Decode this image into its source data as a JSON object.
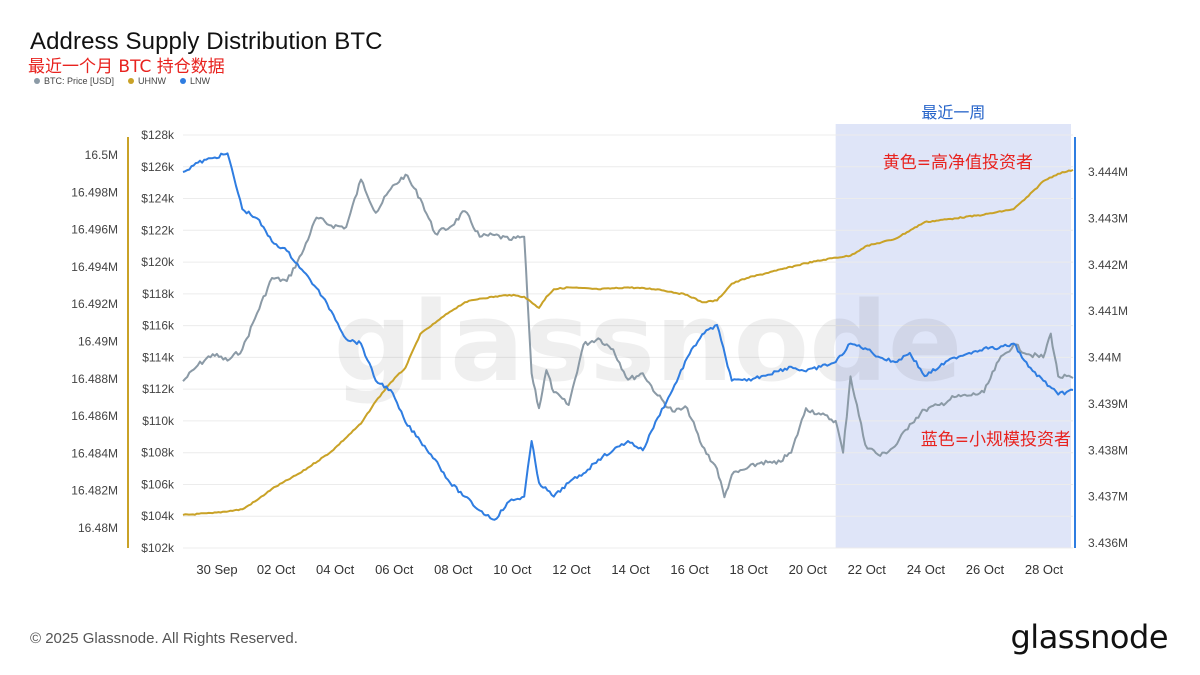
{
  "header": {
    "title": "Address Supply Distribution BTC",
    "subtitle": "最近一个月 BTC 持仓数据"
  },
  "legend": [
    {
      "label": "BTC: Price [USD]",
      "color": "#8b9aa6"
    },
    {
      "label": "UHNW",
      "color": "#c9a227"
    },
    {
      "label": "LNW",
      "color": "#2f7de1"
    }
  ],
  "footer": {
    "copyright": "© 2025 Glassnode. All Rights Reserved.",
    "logo": "glassnode"
  },
  "chart_data": {
    "type": "line",
    "title": "Address Supply Distribution BTC",
    "x_ticks": [
      "30 Sep",
      "02 Oct",
      "04 Oct",
      "06 Oct",
      "08 Oct",
      "10 Oct",
      "12 Oct",
      "14 Oct",
      "16 Oct",
      "18 Oct",
      "20 Oct",
      "22 Oct",
      "24 Oct",
      "26 Oct",
      "28 Oct"
    ],
    "x_range": [
      "2025-09-29",
      "2025-10-29"
    ],
    "axes": {
      "price": {
        "side": "middle-left",
        "ticks": [
          "$128k",
          "$126k",
          "$124k",
          "$122k",
          "$120k",
          "$118k",
          "$116k",
          "$114k",
          "$112k",
          "$110k",
          "$108k",
          "$106k",
          "$104k",
          "$102k"
        ],
        "range": [
          102000,
          128000
        ]
      },
      "uhnw": {
        "side": "left",
        "color": "#c9a227",
        "ticks": [
          "16.5M",
          "16.498M",
          "16.496M",
          "16.494M",
          "16.492M",
          "16.49M",
          "16.488M",
          "16.486M",
          "16.484M",
          "16.482M",
          "16.48M"
        ],
        "range": [
          16479000,
          16501000
        ]
      },
      "lnw": {
        "side": "right",
        "color": "#2f7de1",
        "ticks": [
          "3.444M",
          "3.443M",
          "3.442M",
          "3.441M",
          "3.44M",
          "3.439M",
          "3.438M",
          "3.437M",
          "3.436M"
        ],
        "range": [
          3435800,
          3444600
        ]
      }
    },
    "series": [
      {
        "name": "BTC: Price [USD]",
        "axis": "price",
        "color": "#8b9aa6",
        "points": [
          [
            "2025-09-29",
            112500
          ],
          [
            "2025-09-29T12:00",
            113500
          ],
          [
            "2025-09-30",
            114200
          ],
          [
            "2025-09-30T12:00",
            113800
          ],
          [
            "2025-10-01",
            114500
          ],
          [
            "2025-10-01T12:00",
            116800
          ],
          [
            "2025-10-02",
            119000
          ],
          [
            "2025-10-02T12:00",
            118800
          ],
          [
            "2025-10-03",
            120500
          ],
          [
            "2025-10-03T12:00",
            122800
          ],
          [
            "2025-10-04",
            122300
          ],
          [
            "2025-10-04T12:00",
            122200
          ],
          [
            "2025-10-05",
            125200
          ],
          [
            "2025-10-05T12:00",
            123100
          ],
          [
            "2025-10-06",
            124600
          ],
          [
            "2025-10-06T12:00",
            125500
          ],
          [
            "2025-10-07",
            124000
          ],
          [
            "2025-10-07T12:00",
            121800
          ],
          [
            "2025-10-08",
            122200
          ],
          [
            "2025-10-08T12:00",
            123200
          ],
          [
            "2025-10-09",
            121600
          ],
          [
            "2025-10-09T12:00",
            121700
          ],
          [
            "2025-10-10",
            121400
          ],
          [
            "2025-10-10T12:00",
            121600
          ],
          [
            "2025-10-10T18:00",
            113000
          ],
          [
            "2025-10-11",
            110800
          ],
          [
            "2025-10-11T06:00",
            113200
          ],
          [
            "2025-10-11T12:00",
            111800
          ],
          [
            "2025-10-12",
            111000
          ],
          [
            "2025-10-12T12:00",
            114800
          ],
          [
            "2025-10-13",
            115200
          ],
          [
            "2025-10-13T12:00",
            114500
          ],
          [
            "2025-10-14",
            112600
          ],
          [
            "2025-10-14T12:00",
            113000
          ],
          [
            "2025-10-15",
            111600
          ],
          [
            "2025-10-15T12:00",
            110600
          ],
          [
            "2025-10-16",
            110800
          ],
          [
            "2025-10-16T12:00",
            108400
          ],
          [
            "2025-10-17",
            107000
          ],
          [
            "2025-10-17T06:00",
            105200
          ],
          [
            "2025-10-17T12:00",
            106600
          ],
          [
            "2025-10-18",
            107000
          ],
          [
            "2025-10-18T12:00",
            107400
          ],
          [
            "2025-10-19",
            107300
          ],
          [
            "2025-10-19T12:00",
            108000
          ],
          [
            "2025-10-20",
            110800
          ],
          [
            "2025-10-20T12:00",
            110400
          ],
          [
            "2025-10-21",
            110000
          ],
          [
            "2025-10-21T06:00",
            108000
          ],
          [
            "2025-10-21T12:00",
            112800
          ],
          [
            "2025-10-22",
            108500
          ],
          [
            "2025-10-22T12:00",
            107800
          ],
          [
            "2025-10-23",
            108400
          ],
          [
            "2025-10-23T12:00",
            109800
          ],
          [
            "2025-10-24",
            110700
          ],
          [
            "2025-10-24T12:00",
            111000
          ],
          [
            "2025-10-25",
            111500
          ],
          [
            "2025-10-25T12:00",
            111600
          ],
          [
            "2025-10-26",
            111800
          ],
          [
            "2025-10-26T12:00",
            113800
          ],
          [
            "2025-10-27",
            114800
          ],
          [
            "2025-10-27T12:00",
            114200
          ],
          [
            "2025-10-28",
            114000
          ],
          [
            "2025-10-28T06:00",
            115500
          ],
          [
            "2025-10-28T12:00",
            112800
          ],
          [
            "2025-10-29",
            112700
          ]
        ]
      },
      {
        "name": "UHNW",
        "axis": "uhnw",
        "color": "#c9a227",
        "points": [
          [
            "2025-09-29",
            16480700
          ],
          [
            "2025-09-30",
            16480800
          ],
          [
            "2025-10-01",
            16481000
          ],
          [
            "2025-10-01T12:00",
            16481500
          ],
          [
            "2025-10-02",
            16482100
          ],
          [
            "2025-10-03",
            16483000
          ],
          [
            "2025-10-04",
            16484100
          ],
          [
            "2025-10-05",
            16485600
          ],
          [
            "2025-10-05T12:00",
            16486800
          ],
          [
            "2025-10-06",
            16487800
          ],
          [
            "2025-10-06T12:00",
            16488600
          ],
          [
            "2025-10-07",
            16490400
          ],
          [
            "2025-10-07T12:00",
            16491000
          ],
          [
            "2025-10-08",
            16491600
          ],
          [
            "2025-10-08T12:00",
            16492100
          ],
          [
            "2025-10-09",
            16492300
          ],
          [
            "2025-10-10",
            16492500
          ],
          [
            "2025-10-10T12:00",
            16492400
          ],
          [
            "2025-10-11",
            16491800
          ],
          [
            "2025-10-11T06:00",
            16492400
          ],
          [
            "2025-10-11T12:00",
            16492800
          ],
          [
            "2025-10-12",
            16492900
          ],
          [
            "2025-10-13",
            16492800
          ],
          [
            "2025-10-14",
            16492900
          ],
          [
            "2025-10-15",
            16492800
          ],
          [
            "2025-10-16",
            16492500
          ],
          [
            "2025-10-16T12:00",
            16492100
          ],
          [
            "2025-10-17",
            16492200
          ],
          [
            "2025-10-17T12:00",
            16493100
          ],
          [
            "2025-10-18",
            16493400
          ],
          [
            "2025-10-19",
            16493800
          ],
          [
            "2025-10-20",
            16494200
          ],
          [
            "2025-10-21",
            16494500
          ],
          [
            "2025-10-21T12:00",
            16494600
          ],
          [
            "2025-10-22",
            16495100
          ],
          [
            "2025-10-23",
            16495500
          ],
          [
            "2025-10-24",
            16496400
          ],
          [
            "2025-10-25",
            16496600
          ],
          [
            "2025-10-26",
            16496800
          ],
          [
            "2025-10-27",
            16497100
          ],
          [
            "2025-10-27T12:00",
            16497800
          ],
          [
            "2025-10-28",
            16498600
          ],
          [
            "2025-10-28T12:00",
            16499000
          ],
          [
            "2025-10-29",
            16499200
          ]
        ]
      },
      {
        "name": "LNW",
        "axis": "lnw",
        "color": "#2f7de1",
        "points": [
          [
            "2025-09-29",
            3444000
          ],
          [
            "2025-09-29T12:00",
            3444200
          ],
          [
            "2025-09-30",
            3444300
          ],
          [
            "2025-09-30T12:00",
            3444400
          ],
          [
            "2025-10-01",
            3443200
          ],
          [
            "2025-10-01T12:00",
            3443000
          ],
          [
            "2025-10-02",
            3442500
          ],
          [
            "2025-10-02T12:00",
            3442300
          ],
          [
            "2025-10-03",
            3441900
          ],
          [
            "2025-10-03T12:00",
            3441500
          ],
          [
            "2025-10-04",
            3441000
          ],
          [
            "2025-10-04T12:00",
            3440400
          ],
          [
            "2025-10-05",
            3440300
          ],
          [
            "2025-10-05T12:00",
            3439500
          ],
          [
            "2025-10-06",
            3439300
          ],
          [
            "2025-10-06T12:00",
            3438600
          ],
          [
            "2025-10-07",
            3438200
          ],
          [
            "2025-10-07T12:00",
            3437800
          ],
          [
            "2025-10-08",
            3437300
          ],
          [
            "2025-10-08T12:00",
            3437000
          ],
          [
            "2025-10-09",
            3436700
          ],
          [
            "2025-10-09T12:00",
            3436500
          ],
          [
            "2025-10-10",
            3436900
          ],
          [
            "2025-10-10T12:00",
            3437000
          ],
          [
            "2025-10-10T18:00",
            3438200
          ],
          [
            "2025-10-11",
            3437300
          ],
          [
            "2025-10-11T12:00",
            3437000
          ],
          [
            "2025-10-12",
            3437300
          ],
          [
            "2025-10-12T12:00",
            3437500
          ],
          [
            "2025-10-13",
            3437800
          ],
          [
            "2025-10-13T12:00",
            3438000
          ],
          [
            "2025-10-14",
            3438200
          ],
          [
            "2025-10-14T12:00",
            3438000
          ],
          [
            "2025-10-15",
            3438700
          ],
          [
            "2025-10-15T12:00",
            3439300
          ],
          [
            "2025-10-16",
            3440000
          ],
          [
            "2025-10-16T12:00",
            3440500
          ],
          [
            "2025-10-17",
            3440700
          ],
          [
            "2025-10-17T12:00",
            3439500
          ],
          [
            "2025-10-18",
            3439500
          ],
          [
            "2025-10-18T12:00",
            3439600
          ],
          [
            "2025-10-19",
            3439700
          ],
          [
            "2025-10-19T12:00",
            3439800
          ],
          [
            "2025-10-20",
            3439700
          ],
          [
            "2025-10-20T12:00",
            3439800
          ],
          [
            "2025-10-21",
            3439900
          ],
          [
            "2025-10-21T12:00",
            3440300
          ],
          [
            "2025-10-22",
            3440200
          ],
          [
            "2025-10-22T12:00",
            3440000
          ],
          [
            "2025-10-23",
            3439900
          ],
          [
            "2025-10-23T12:00",
            3440100
          ],
          [
            "2025-10-24",
            3439600
          ],
          [
            "2025-10-24T12:00",
            3439800
          ],
          [
            "2025-10-25",
            3440000
          ],
          [
            "2025-10-25T12:00",
            3440100
          ],
          [
            "2025-10-26",
            3440200
          ],
          [
            "2025-10-26T12:00",
            3440200
          ],
          [
            "2025-10-27",
            3440300
          ],
          [
            "2025-10-27T12:00",
            3439800
          ],
          [
            "2025-10-28",
            3439500
          ],
          [
            "2025-10-28T12:00",
            3439200
          ],
          [
            "2025-10-29",
            3439300
          ]
        ]
      }
    ],
    "highlight": {
      "from": "2025-10-21",
      "to": "2025-10-29",
      "label": "最近一周",
      "color": "#dfe5f8"
    },
    "annotations": [
      {
        "text": "黄色=高净值投资者",
        "color": "#e8231f"
      },
      {
        "text": "蓝色=小规模投资者",
        "color": "#e8231f"
      }
    ],
    "watermark": "glassnode",
    "grid": "horizontal"
  }
}
